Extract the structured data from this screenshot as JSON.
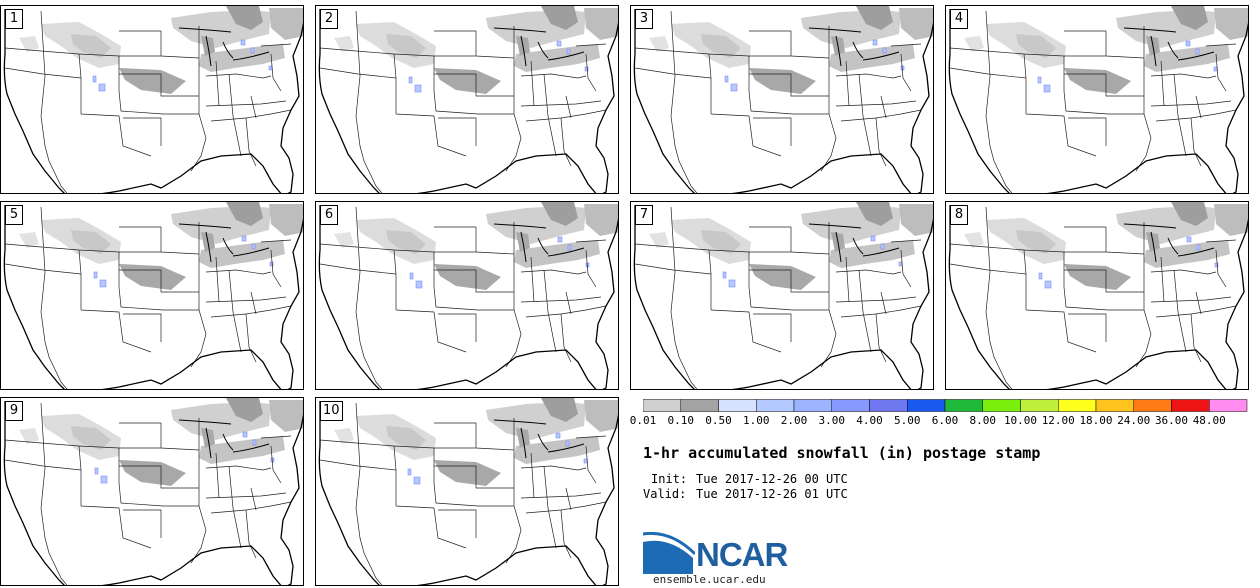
{
  "title": "1-hr accumulated snowfall (in) postage stamp",
  "init_label": "Init:",
  "init_value": "Tue 2017-12-26 00 UTC",
  "valid_label": "Valid:",
  "valid_value": "Tue 2017-12-26 01 UTC",
  "logo_text": "NCAR",
  "website": "ensemble.ucar.edu",
  "panels": [
    {
      "number": "1"
    },
    {
      "number": "2"
    },
    {
      "number": "3"
    },
    {
      "number": "4"
    },
    {
      "number": "5"
    },
    {
      "number": "6"
    },
    {
      "number": "7"
    },
    {
      "number": "8"
    },
    {
      "number": "9"
    },
    {
      "number": "10"
    }
  ],
  "colorbar": {
    "thresholds": [
      "0.01",
      "0.10",
      "0.50",
      "1.00",
      "2.00",
      "3.00",
      "4.00",
      "5.00",
      "6.00",
      "8.00",
      "10.00",
      "12.00",
      "18.00",
      "24.00",
      "36.00",
      "48.00"
    ],
    "colors": [
      "#d0d0d0",
      "#a3a3a3",
      "#d6e2ff",
      "#b4c9ff",
      "#9cb4ff",
      "#8699ff",
      "#6f78f0",
      "#1a5af0",
      "#1fb93a",
      "#7cf00d",
      "#bef03c",
      "#ffff1e",
      "#ffc31e",
      "#ff7a14",
      "#ee1414",
      "#ff8cee"
    ]
  }
}
